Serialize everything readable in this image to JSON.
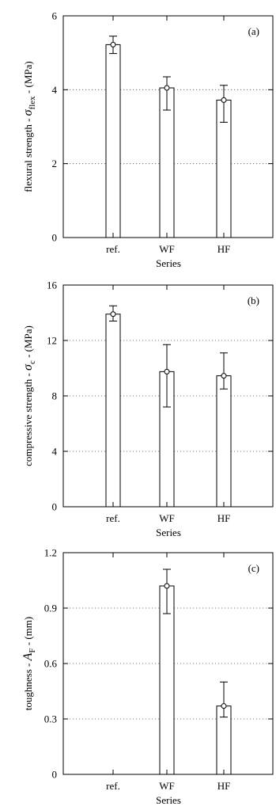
{
  "chart_data": [
    {
      "panel_label": "(a)",
      "type": "bar",
      "categories": [
        "ref.",
        "WF",
        "HF"
      ],
      "values": [
        5.22,
        4.05,
        3.72
      ],
      "error_low": [
        4.98,
        3.45,
        3.12
      ],
      "error_high": [
        5.45,
        4.35,
        4.12
      ],
      "ylabel": {
        "prefix": "flexural strength - ",
        "symbol": "σ",
        "subscript": "flex",
        "suffix": " -   (MPa)"
      },
      "xlabel": "Series",
      "ylim": [
        0,
        6
      ],
      "yticks": [
        0,
        2,
        4,
        6
      ],
      "ytick_labels": [
        "0",
        "2",
        "4",
        "6"
      ],
      "grid": "horizontal dotted"
    },
    {
      "panel_label": "(b)",
      "type": "bar",
      "categories": [
        "ref.",
        "WF",
        "HF"
      ],
      "values": [
        13.9,
        9.75,
        9.45
      ],
      "error_low": [
        13.4,
        7.2,
        8.5
      ],
      "error_high": [
        14.5,
        11.7,
        11.1
      ],
      "ylabel": {
        "prefix": "compressive strength - ",
        "symbol": "σ",
        "subscript": "c",
        "suffix": " -   (MPa)"
      },
      "xlabel": "Series",
      "ylim": [
        0,
        16
      ],
      "yticks": [
        0,
        4,
        8,
        12,
        16
      ],
      "ytick_labels": [
        "0",
        "4",
        "8",
        "12",
        "16"
      ],
      "grid": "horizontal dotted"
    },
    {
      "panel_label": "(c)",
      "type": "bar",
      "categories": [
        "ref.",
        "WF",
        "HF"
      ],
      "values": [
        0,
        1.02,
        0.37
      ],
      "error_low": [
        0,
        0.87,
        0.31
      ],
      "error_high": [
        0,
        1.11,
        0.5
      ],
      "ylabel": {
        "prefix": "toughness - ",
        "symbol": "A",
        "subscript": "F",
        "suffix": " -   (mm)"
      },
      "xlabel": "Series",
      "ylim": [
        0,
        1.2
      ],
      "yticks": [
        0,
        0.3,
        0.6,
        0.9,
        1.2
      ],
      "ytick_labels": [
        "0",
        "0.3",
        "0.6",
        "0.9",
        "1.2"
      ],
      "grid": "horizontal dotted"
    }
  ]
}
